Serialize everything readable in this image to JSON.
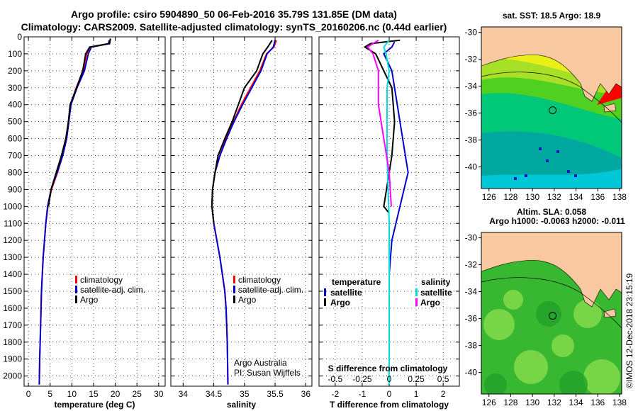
{
  "header": {
    "line1": "Argo profile: csiro 5904890_50 06-Feb-2016 35.79S 131.85E (DM data)",
    "line2": "Climatology: CARS2009. Satellite-adjusted climatology: synTS_20160206.nc (0.44d earlier)"
  },
  "credit": {
    "agency": "Argo Australia",
    "pi": "PI: Susan Wijffels",
    "imos": "©IMOS 12-Dec-2018 23:15:19"
  },
  "colors": {
    "climatology": "#ff0000",
    "satellite": "#0000cc",
    "argo": "#000000",
    "sal_satellite": "#00dddd",
    "sal_argo": "#ff00ff",
    "land": "#f8c8a0"
  },
  "chart_data": [
    {
      "type": "line",
      "name": "temperature-profile",
      "xlabel": "temperature (deg C)",
      "xlim": [
        -1,
        31.5
      ],
      "ylim": [
        0,
        2060
      ],
      "xticks": [
        0,
        5,
        10,
        15,
        20,
        25,
        30
      ],
      "yticks": [
        0,
        100,
        200,
        300,
        400,
        500,
        600,
        700,
        800,
        900,
        1000,
        1100,
        1200,
        1300,
        1400,
        1500,
        1600,
        1700,
        1800,
        1900,
        2000
      ],
      "legend": [
        "climatology",
        "satellite-adj. clim.",
        "Argo"
      ],
      "series": [
        {
          "name": "climatology",
          "x": [
            18.6,
            18.4,
            14.2,
            13.4,
            12.6,
            11.0,
            9.7,
            9.3,
            8.8,
            7.9,
            6.7,
            5.3,
            4.5,
            4.0,
            3.7,
            3.4,
            3.2,
            3.0,
            2.9,
            2.8,
            2.6,
            2.5
          ],
          "y": [
            20,
            40,
            60,
            100,
            200,
            300,
            400,
            500,
            600,
            700,
            800,
            900,
            1000,
            1100,
            1200,
            1300,
            1400,
            1500,
            1600,
            1700,
            1900,
            2050
          ]
        },
        {
          "name": "satellite-adj. clim.",
          "x": [
            18.6,
            18.5,
            14.5,
            13.8,
            12.9,
            11.2,
            9.8,
            9.3,
            8.8,
            7.9,
            6.6,
            5.2,
            4.4,
            4.0,
            3.7,
            3.4,
            3.2,
            3.0,
            2.9,
            2.8,
            2.6,
            2.5
          ],
          "y": [
            20,
            40,
            60,
            100,
            200,
            300,
            400,
            500,
            600,
            700,
            800,
            900,
            1000,
            1100,
            1200,
            1300,
            1400,
            1500,
            1600,
            1700,
            1900,
            2050
          ]
        },
        {
          "name": "Argo",
          "x": [
            18.9,
            18.7,
            14.1,
            13.2,
            12.5,
            11.1,
            9.6,
            9.2,
            8.6,
            7.6,
            6.4,
            5.2,
            4.6
          ],
          "y": [
            10,
            40,
            60,
            100,
            200,
            300,
            400,
            500,
            600,
            700,
            800,
            900,
            1000
          ]
        }
      ]
    },
    {
      "type": "line",
      "name": "salinity-profile",
      "xlabel": "salinity",
      "xlim": [
        33.8,
        36.1
      ],
      "ylim": [
        0,
        2060
      ],
      "xticks": [
        34,
        34.5,
        35,
        35.5,
        36
      ],
      "xticklabels": [
        "34",
        "34.5",
        "35",
        "35.5",
        "36"
      ],
      "legend": [
        "climatology",
        "satellite-adj. clim.",
        "Argo"
      ],
      "series": [
        {
          "name": "climatology",
          "x": [
            35.52,
            35.48,
            35.36,
            35.25,
            35.1,
            34.95,
            34.82,
            34.7,
            34.6,
            34.52,
            34.48,
            34.47,
            34.5,
            34.55,
            34.6,
            34.64,
            34.68,
            34.7,
            34.72,
            34.73
          ],
          "y": [
            20,
            60,
            100,
            200,
            300,
            400,
            500,
            600,
            700,
            800,
            900,
            1000,
            1100,
            1200,
            1300,
            1400,
            1500,
            1600,
            1800,
            2050
          ]
        },
        {
          "name": "satellite-adj. clim.",
          "x": [
            35.5,
            35.47,
            35.37,
            35.27,
            35.12,
            34.97,
            34.83,
            34.71,
            34.6,
            34.52,
            34.48,
            34.47,
            34.5,
            34.55,
            34.6,
            34.64,
            34.68,
            34.7,
            34.72,
            34.73
          ],
          "y": [
            20,
            60,
            100,
            200,
            300,
            400,
            500,
            600,
            700,
            800,
            900,
            1000,
            1100,
            1200,
            1300,
            1400,
            1500,
            1600,
            1800,
            2050
          ]
        },
        {
          "name": "Argo",
          "x": [
            35.45,
            35.38,
            35.3,
            35.2,
            35.0,
            34.9,
            34.8,
            34.68,
            34.57,
            34.52,
            34.48,
            34.47,
            34.5
          ],
          "y": [
            20,
            60,
            100,
            200,
            300,
            400,
            500,
            600,
            700,
            800,
            900,
            1000,
            1100
          ]
        }
      ]
    },
    {
      "type": "line",
      "name": "difference-profile",
      "xlabel": "T difference from climatology",
      "xlabel2": "S difference from climatology",
      "xlim": [
        -2.6,
        2.6
      ],
      "ylim": [
        0,
        2060
      ],
      "xticks": [
        -2,
        -1,
        0,
        1,
        2
      ],
      "xticks_s": [
        -0.5,
        -0.25,
        0,
        0.25,
        0.5
      ],
      "xticklabels_s": [
        "-0.5",
        "-0.25",
        "0",
        "0.25",
        "0.5"
      ],
      "legend_t_title": "temperature",
      "legend_s_title": "salinity",
      "legend_t": [
        "satellite",
        "Argo"
      ],
      "legend_s": [
        "satellite",
        "Argo"
      ],
      "series": [
        {
          "name": "T satellite",
          "x": [
            0.2,
            0.1,
            -0.2,
            0.1,
            0.2,
            0.3,
            0.4,
            0.5,
            0.6,
            0.7,
            0.55,
            0.4,
            0.25,
            0.1,
            0.05,
            0.0,
            0.0,
            0.0,
            0.0,
            0.0
          ],
          "y": [
            30,
            60,
            100,
            200,
            300,
            400,
            500,
            600,
            700,
            800,
            900,
            1000,
            1100,
            1200,
            1300,
            1400,
            1600,
            1800,
            1900,
            2050
          ]
        },
        {
          "name": "T Argo",
          "x": [
            0.4,
            -0.7,
            -0.9,
            -0.5,
            -0.2,
            0.1,
            0.2,
            0.1,
            0.0,
            -0.1,
            -0.2,
            0.0
          ],
          "y": [
            20,
            40,
            60,
            100,
            200,
            300,
            500,
            700,
            800,
            900,
            1000,
            1040
          ]
        },
        {
          "name": "S satellite",
          "x": [
            0.0,
            -0.05,
            -0.03,
            0.0,
            -0.02,
            -0.02,
            -0.02,
            -0.01,
            0.0,
            0.0,
            0.0,
            0.0
          ],
          "y": [
            20,
            60,
            100,
            200,
            300,
            500,
            700,
            900,
            1100,
            1300,
            1600,
            2050
          ]
        },
        {
          "name": "S Argo",
          "x": [
            -0.1,
            -0.2,
            -0.15,
            -0.1,
            -0.1,
            -0.05,
            0.0,
            0.02
          ],
          "y": [
            20,
            60,
            100,
            200,
            400,
            600,
            800,
            1000
          ]
        }
      ]
    },
    {
      "type": "heatmap",
      "name": "sst-map",
      "title": "sat. SST: 18.5  Argo: 18.9",
      "xticks": [
        126,
        128,
        130,
        132,
        134,
        136,
        138
      ],
      "yticks": [
        -30,
        -32,
        -34,
        -36,
        -38,
        -40
      ],
      "profile_location": [
        131.85,
        -35.79
      ]
    },
    {
      "type": "heatmap",
      "name": "sla-map",
      "title": "Altim. SLA: 0.058",
      "subtitle": "Argo h1000: -0.0063  h2000: -0.011",
      "xticks": [
        126,
        128,
        130,
        132,
        134,
        136,
        138
      ],
      "yticks": [
        -30,
        -32,
        -34,
        -36,
        -38,
        -40
      ],
      "profile_location": [
        131.85,
        -35.79
      ]
    }
  ]
}
